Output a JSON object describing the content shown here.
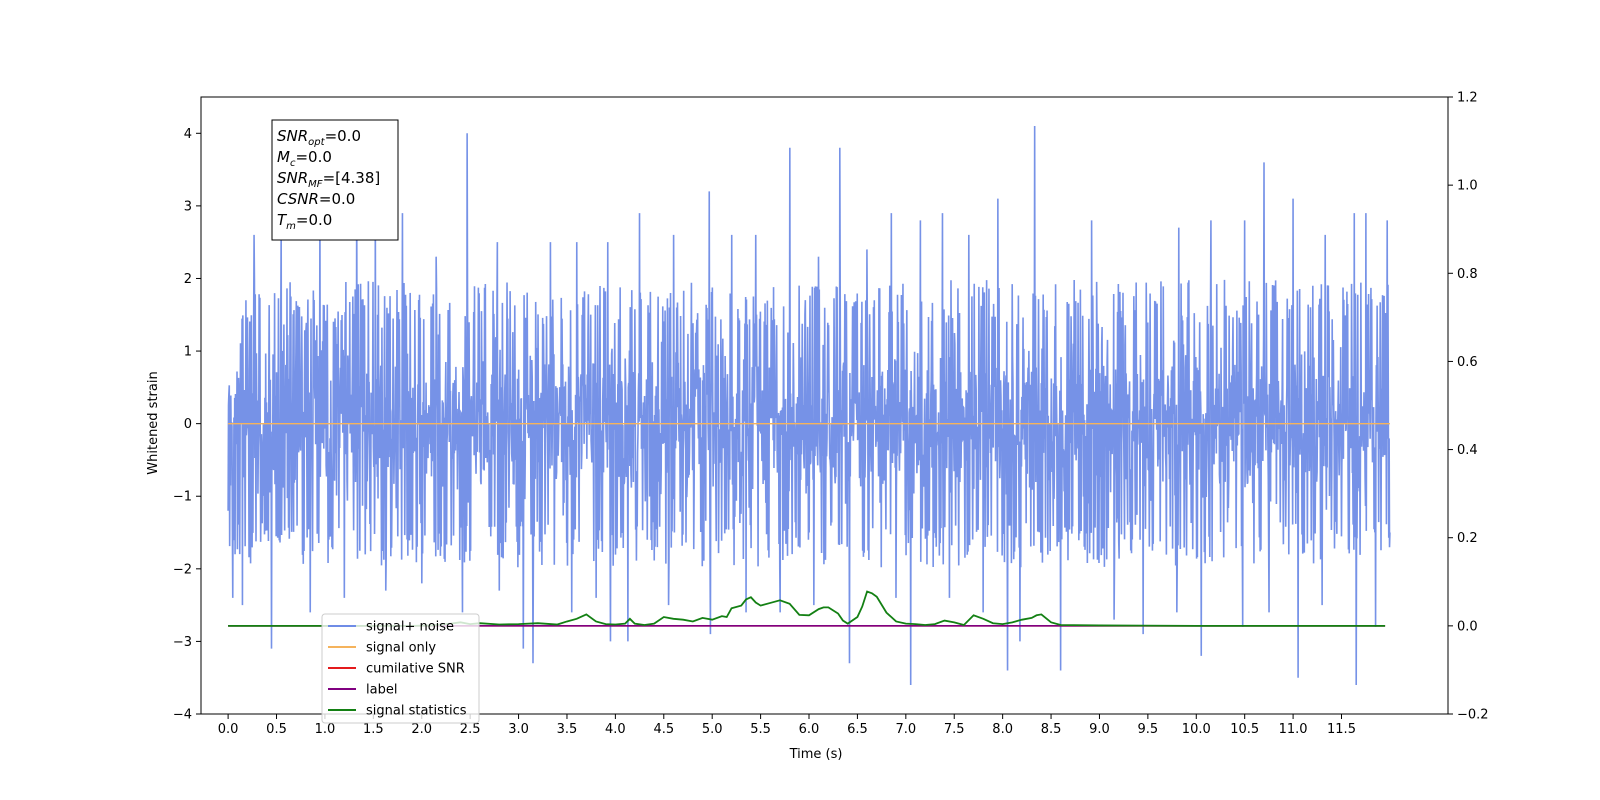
{
  "chart_data": {
    "type": "line",
    "xlabel": "Time (s)",
    "ylabel": "Whitened strain",
    "xlim": [
      -0.28,
      12.6
    ],
    "ylim": [
      -4,
      4.5
    ],
    "y2lim": [
      -0.2,
      1.2
    ],
    "x_ticks": [
      0.0,
      0.5,
      1.0,
      1.5,
      2.0,
      2.5,
      3.0,
      3.5,
      4.0,
      4.5,
      5.0,
      5.5,
      6.0,
      6.5,
      7.0,
      7.5,
      8.0,
      8.5,
      9.0,
      9.5,
      10.0,
      10.5,
      11.0,
      11.5
    ],
    "x_tick_labels": [
      "0.0",
      "0.5",
      "1.0",
      "1.5",
      "2.0",
      "2.5",
      "3.0",
      "3.5",
      "4.0",
      "4.5",
      "5.0",
      "5.5",
      "6.0",
      "6.5",
      "7.0",
      "7.5",
      "8.0",
      "8.5",
      "9.0",
      "9.5",
      "10.0",
      "10.5",
      "11.0",
      "11.5"
    ],
    "y_ticks": [
      -4,
      -3,
      -2,
      -1,
      0,
      1,
      2,
      3,
      4
    ],
    "y_tick_labels": [
      "−4",
      "−3",
      "−2",
      "−1",
      "0",
      "1",
      "2",
      "3",
      "4"
    ],
    "y2_ticks": [
      -0.2,
      0.0,
      0.2,
      0.4,
      0.6,
      0.8,
      1.0,
      1.2
    ],
    "y2_tick_labels": [
      "−0.2",
      "0.0",
      "0.2",
      "0.4",
      "0.6",
      "0.8",
      "1.0",
      "1.2"
    ],
    "grid": false,
    "legend_position": "lower-left",
    "noise": {
      "name": "signal+ noise",
      "color": "#6f8ce6",
      "x_range": [
        0.0,
        12.0
      ],
      "typical_envelope": [
        -1.8,
        1.8
      ],
      "peaks_up": [
        [
          0.0,
          1.8
        ],
        [
          0.05,
          2.4
        ],
        [
          0.27,
          2.6
        ],
        [
          0.55,
          2.7
        ],
        [
          0.95,
          3.0
        ],
        [
          1.33,
          3.2
        ],
        [
          1.52,
          2.8
        ],
        [
          1.8,
          2.9
        ],
        [
          2.15,
          2.3
        ],
        [
          2.47,
          4.0
        ],
        [
          2.78,
          2.5
        ],
        [
          3.05,
          2.4
        ],
        [
          3.33,
          2.5
        ],
        [
          3.6,
          2.5
        ],
        [
          3.92,
          2.5
        ],
        [
          4.25,
          2.9
        ],
        [
          4.6,
          2.6
        ],
        [
          4.97,
          3.2
        ],
        [
          5.2,
          2.6
        ],
        [
          5.45,
          2.6
        ],
        [
          5.8,
          3.8
        ],
        [
          6.1,
          2.3
        ],
        [
          6.32,
          3.8
        ],
        [
          6.6,
          2.4
        ],
        [
          6.85,
          2.9
        ],
        [
          7.15,
          2.8
        ],
        [
          7.38,
          2.9
        ],
        [
          7.65,
          2.6
        ],
        [
          7.95,
          3.1
        ],
        [
          8.33,
          4.1
        ],
        [
          8.6,
          2.5
        ],
        [
          8.92,
          2.8
        ],
        [
          9.15,
          2.7
        ],
        [
          9.45,
          2.6
        ],
        [
          9.82,
          2.7
        ],
        [
          10.15,
          2.8
        ],
        [
          10.5,
          2.8
        ],
        [
          10.7,
          3.6
        ],
        [
          11.0,
          3.1
        ],
        [
          11.33,
          2.6
        ],
        [
          11.63,
          2.9
        ],
        [
          11.75,
          2.9
        ],
        [
          11.97,
          2.8
        ],
        [
          12.0,
          1.4
        ]
      ],
      "peaks_down": [
        [
          0.0,
          -1.2
        ],
        [
          0.05,
          -2.4
        ],
        [
          0.15,
          -2.5
        ],
        [
          0.45,
          -3.1
        ],
        [
          0.85,
          -2.6
        ],
        [
          1.2,
          -2.4
        ],
        [
          1.63,
          -2.3
        ],
        [
          2.0,
          -2.2
        ],
        [
          2.42,
          -2.6
        ],
        [
          2.8,
          -2.3
        ],
        [
          3.05,
          -3.1
        ],
        [
          3.15,
          -3.3
        ],
        [
          3.55,
          -2.6
        ],
        [
          3.8,
          -2.4
        ],
        [
          3.95,
          -3.0
        ],
        [
          4.13,
          -3.0
        ],
        [
          4.55,
          -2.5
        ],
        [
          4.98,
          -2.9
        ],
        [
          5.35,
          -2.6
        ],
        [
          5.7,
          -2.6
        ],
        [
          6.05,
          -2.5
        ],
        [
          6.42,
          -3.3
        ],
        [
          6.9,
          -2.4
        ],
        [
          7.05,
          -3.6
        ],
        [
          7.45,
          -2.4
        ],
        [
          7.8,
          -2.6
        ],
        [
          8.05,
          -3.4
        ],
        [
          8.18,
          -3.0
        ],
        [
          8.6,
          -3.4
        ],
        [
          9.15,
          -2.7
        ],
        [
          9.45,
          -2.9
        ],
        [
          9.8,
          -2.6
        ],
        [
          10.05,
          -3.2
        ],
        [
          10.48,
          -2.8
        ],
        [
          10.75,
          -2.6
        ],
        [
          11.05,
          -3.5
        ],
        [
          11.3,
          -2.5
        ],
        [
          11.65,
          -3.6
        ],
        [
          11.85,
          -2.8
        ],
        [
          12.0,
          -1.5
        ]
      ]
    },
    "signal_only": {
      "name": "signal only",
      "color": "#f5b35c",
      "axis": "left",
      "x": [
        0.0,
        12.0
      ],
      "y": [
        0.0,
        0.0
      ]
    },
    "cumulative_snr": {
      "name": "cumilative SNR",
      "color": "#e41a1c",
      "axis": "right",
      "x": [
        0.0,
        11.95
      ],
      "y": [
        0.0,
        0.0
      ]
    },
    "label_only": {
      "name": "label",
      "color": "#800080",
      "axis": "right",
      "x": [
        0.0,
        11.95
      ],
      "y": [
        0.0,
        0.0
      ]
    },
    "signal_statistics": {
      "name": "signal statistics",
      "color": "#138013",
      "axis": "right",
      "x": [
        0.0,
        0.5,
        1.0,
        1.5,
        1.9,
        2.1,
        2.2,
        2.3,
        2.4,
        2.5,
        2.6,
        2.8,
        3.0,
        3.2,
        3.4,
        3.5,
        3.6,
        3.7,
        3.8,
        3.9,
        4.0,
        4.1,
        4.15,
        4.2,
        4.3,
        4.4,
        4.5,
        4.6,
        4.7,
        4.8,
        4.9,
        5.0,
        5.1,
        5.15,
        5.2,
        5.3,
        5.35,
        5.4,
        5.45,
        5.5,
        5.6,
        5.7,
        5.8,
        5.9,
        6.0,
        6.1,
        6.15,
        6.2,
        6.3,
        6.35,
        6.4,
        6.5,
        6.55,
        6.6,
        6.65,
        6.7,
        6.8,
        6.9,
        7.0,
        7.1,
        7.2,
        7.3,
        7.4,
        7.5,
        7.6,
        7.7,
        7.8,
        7.9,
        8.0,
        8.1,
        8.2,
        8.3,
        8.35,
        8.4,
        8.5,
        8.6,
        9.0,
        10.0,
        11.0,
        11.95
      ],
      "y": [
        0.0,
        0.0,
        0.0,
        0.0,
        0.0,
        0.001,
        0.003,
        0.005,
        0.008,
        0.004,
        0.006,
        0.003,
        0.004,
        0.006,
        0.003,
        0.01,
        0.016,
        0.026,
        0.01,
        0.004,
        0.003,
        0.005,
        0.016,
        0.005,
        0.002,
        0.005,
        0.02,
        0.016,
        0.014,
        0.01,
        0.018,
        0.014,
        0.022,
        0.02,
        0.04,
        0.046,
        0.06,
        0.065,
        0.053,
        0.046,
        0.052,
        0.058,
        0.05,
        0.025,
        0.024,
        0.038,
        0.042,
        0.042,
        0.028,
        0.012,
        0.005,
        0.02,
        0.044,
        0.078,
        0.074,
        0.066,
        0.03,
        0.01,
        0.005,
        0.004,
        0.002,
        0.004,
        0.012,
        0.008,
        0.002,
        0.024,
        0.016,
        0.006,
        0.004,
        0.008,
        0.014,
        0.018,
        0.024,
        0.026,
        0.008,
        0.002,
        0.001,
        0.0,
        0.0,
        0.0
      ]
    },
    "legend": [
      "signal+ noise",
      "signal only",
      "cumilative SNR",
      "label",
      "signal statistics"
    ],
    "annotation_box": [
      {
        "base": "SNR",
        "sub": "opt",
        "value": "=0.0"
      },
      {
        "base": "M",
        "sub": "c",
        "value": "=0.0"
      },
      {
        "base": "SNR",
        "sub": "MF",
        "value": "=[4.38]"
      },
      {
        "base": "CSNR",
        "sub": "",
        "value": "=0.0"
      },
      {
        "base": "T",
        "sub": "m",
        "value": "=0.0"
      }
    ]
  }
}
